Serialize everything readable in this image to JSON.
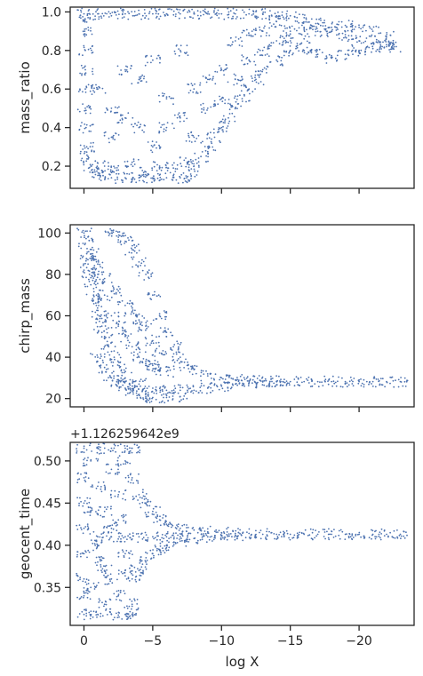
{
  "chart_data": [
    {
      "type": "scatter",
      "ylabel": "mass_ratio",
      "xlabel": "",
      "offset_text": "",
      "xlim": [
        1,
        -24
      ],
      "ylim": [
        0.085,
        1.025
      ],
      "xticks": [
        0,
        -5,
        -10,
        -15,
        -20
      ],
      "xtick_labels": [],
      "yticks": [
        0.2,
        0.4,
        0.6,
        0.8,
        1.0
      ],
      "ytick_labels": [
        "0.2",
        "0.4",
        "0.6",
        "0.8",
        "1.0"
      ],
      "color": "#4c72b0",
      "points": [
        [
          0,
          0.99
        ],
        [
          -0.3,
          0.97
        ],
        [
          -1,
          0.99
        ],
        [
          -2,
          0.98
        ],
        [
          -3,
          0.99
        ],
        [
          -4,
          0.99
        ],
        [
          -5,
          0.99
        ],
        [
          -6,
          0.99
        ],
        [
          -7,
          0.99
        ],
        [
          -8,
          0.99
        ],
        [
          -9,
          0.99
        ],
        [
          -10,
          0.99
        ],
        [
          -11,
          0.99
        ],
        [
          -12,
          0.99
        ],
        [
          -13,
          0.99
        ],
        [
          -14,
          0.98
        ],
        [
          -15,
          0.98
        ],
        [
          -16,
          0.97
        ],
        [
          -17,
          0.94
        ],
        [
          -18,
          0.9
        ],
        [
          -19,
          0.87
        ],
        [
          -20,
          0.85
        ],
        [
          -21,
          0.84
        ],
        [
          -22,
          0.83
        ],
        [
          -22.7,
          0.82
        ],
        [
          -0.05,
          0.9
        ],
        [
          -0.1,
          0.8
        ],
        [
          -0.1,
          0.7
        ],
        [
          -0.1,
          0.6
        ],
        [
          -0.1,
          0.5
        ],
        [
          -0.15,
          0.4
        ],
        [
          -0.2,
          0.3
        ],
        [
          -0.3,
          0.25
        ],
        [
          -0.5,
          0.2
        ],
        [
          -0.8,
          0.17
        ],
        [
          -1.2,
          0.15
        ],
        [
          -2,
          0.14
        ],
        [
          -3,
          0.14
        ],
        [
          -4,
          0.14
        ],
        [
          -5,
          0.14
        ],
        [
          -6,
          0.14
        ],
        [
          -7,
          0.14
        ],
        [
          -7.8,
          0.15
        ],
        [
          -8,
          0.2
        ],
        [
          -8.5,
          0.25
        ],
        [
          -9,
          0.3
        ],
        [
          -9.5,
          0.35
        ],
        [
          -10,
          0.4
        ],
        [
          -10.5,
          0.45
        ],
        [
          -11,
          0.5
        ],
        [
          -11.5,
          0.55
        ],
        [
          -12,
          0.6
        ],
        [
          -12.5,
          0.65
        ],
        [
          -13,
          0.7
        ],
        [
          -14,
          0.75
        ],
        [
          -15,
          0.8
        ],
        [
          -16,
          0.86
        ],
        [
          -17,
          0.9
        ],
        [
          -18,
          0.92
        ],
        [
          -19,
          0.93
        ],
        [
          -20,
          0.92
        ],
        [
          -21,
          0.9
        ],
        [
          -22,
          0.87
        ],
        [
          -16,
          0.8
        ],
        [
          -17,
          0.78
        ],
        [
          -18,
          0.76
        ],
        [
          -19,
          0.78
        ],
        [
          -20,
          0.8
        ],
        [
          -21,
          0.81
        ],
        [
          -22,
          0.82
        ],
        [
          -1,
          0.6
        ],
        [
          -2,
          0.5
        ],
        [
          -3,
          0.7
        ],
        [
          -4,
          0.4
        ],
        [
          -5,
          0.3
        ],
        [
          -6,
          0.55
        ],
        [
          -7,
          0.8
        ],
        [
          -8,
          0.6
        ],
        [
          -9,
          0.5
        ],
        [
          -10,
          0.7
        ],
        [
          -11,
          0.85
        ],
        [
          -12,
          0.75
        ],
        [
          -13,
          0.9
        ],
        [
          -14,
          0.85
        ],
        [
          -15,
          0.9
        ],
        [
          -16,
          0.92
        ],
        [
          -1.5,
          0.2
        ],
        [
          -2.5,
          0.18
        ],
        [
          -3.5,
          0.22
        ],
        [
          -4.5,
          0.17
        ],
        [
          -5.5,
          0.2
        ],
        [
          -6.5,
          0.19
        ],
        [
          -7.5,
          0.22
        ],
        [
          -2,
          0.35
        ],
        [
          -3,
          0.45
        ],
        [
          -4,
          0.65
        ],
        [
          -5,
          0.75
        ],
        [
          -6,
          0.4
        ],
        [
          -7,
          0.45
        ],
        [
          -8,
          0.35
        ],
        [
          -9,
          0.65
        ],
        [
          -10,
          0.55
        ],
        [
          -11,
          0.65
        ],
        [
          -12,
          0.88
        ],
        [
          -13,
          0.8
        ],
        [
          -14,
          0.95
        ],
        [
          -15,
          0.85
        ]
      ]
    },
    {
      "type": "scatter",
      "ylabel": "chirp_mass",
      "xlabel": "",
      "offset_text": "",
      "xlim": [
        1,
        -24
      ],
      "ylim": [
        16,
        104
      ],
      "xticks": [
        0,
        -5,
        -10,
        -15,
        -20
      ],
      "xtick_labels": [],
      "yticks": [
        20,
        40,
        60,
        80,
        100
      ],
      "ytick_labels": [
        "20",
        "40",
        "60",
        "80",
        "100"
      ],
      "color": "#4c72b0",
      "points": [
        [
          0,
          100
        ],
        [
          -0.1,
          95
        ],
        [
          -0.2,
          90
        ],
        [
          -0.3,
          85
        ],
        [
          -0.4,
          80
        ],
        [
          -0.5,
          75
        ],
        [
          -0.7,
          70
        ],
        [
          -0.9,
          65
        ],
        [
          -1.1,
          60
        ],
        [
          -1.3,
          55
        ],
        [
          -1.5,
          50
        ],
        [
          -1.8,
          45
        ],
        [
          -2.2,
          40
        ],
        [
          -2.6,
          35
        ],
        [
          -3,
          30
        ],
        [
          -3.3,
          27
        ],
        [
          -3.6,
          24
        ],
        [
          -4,
          22
        ],
        [
          -4.5,
          21
        ],
        [
          -5,
          20.5
        ],
        [
          -6,
          20.5
        ],
        [
          -7,
          21
        ],
        [
          -2,
          100
        ],
        [
          -2.5,
          98
        ],
        [
          -3,
          96
        ],
        [
          -3.5,
          92
        ],
        [
          -4,
          86
        ],
        [
          -4.5,
          80
        ],
        [
          -5,
          70
        ],
        [
          -5.5,
          60
        ],
        [
          -6,
          52
        ],
        [
          -6.5,
          45
        ],
        [
          -7,
          40
        ],
        [
          -7.5,
          36
        ],
        [
          -8,
          34
        ],
        [
          -9,
          31
        ],
        [
          -10,
          30
        ],
        [
          -11,
          29
        ],
        [
          -12,
          28.5
        ],
        [
          -13,
          28.4
        ],
        [
          -14,
          28.3
        ],
        [
          -15,
          28.2
        ],
        [
          -16,
          28.2
        ],
        [
          -17,
          28.2
        ],
        [
          -18,
          28.2
        ],
        [
          -19,
          28.2
        ],
        [
          -20,
          28.2
        ],
        [
          -21,
          28.2
        ],
        [
          -22,
          28.2
        ],
        [
          -23,
          28.2
        ],
        [
          -8,
          24
        ],
        [
          -9,
          25
        ],
        [
          -10,
          26
        ],
        [
          -11,
          27
        ],
        [
          -12,
          27.5
        ],
        [
          -13,
          28
        ],
        [
          -14,
          28.1
        ],
        [
          -1,
          80
        ],
        [
          -1.5,
          70
        ],
        [
          -2,
          60
        ],
        [
          -2.5,
          55
        ],
        [
          -3,
          50
        ],
        [
          -3.5,
          45
        ],
        [
          -4,
          40
        ],
        [
          -4.5,
          38
        ],
        [
          -5,
          36
        ],
        [
          -5.5,
          34
        ],
        [
          -6,
          33
        ],
        [
          -1,
          40
        ],
        [
          -1.5,
          35
        ],
        [
          -2,
          30
        ],
        [
          -2.5,
          28
        ],
        [
          -3,
          25
        ],
        [
          -4,
          27
        ],
        [
          -5,
          25
        ],
        [
          -6,
          24
        ],
        [
          -7,
          24
        ],
        [
          -0.5,
          90
        ],
        [
          -1,
          85
        ],
        [
          -1.5,
          78
        ],
        [
          -2.5,
          72
        ],
        [
          -3,
          65
        ],
        [
          -3.5,
          62
        ],
        [
          -4,
          58
        ],
        [
          -4.5,
          55
        ],
        [
          -5,
          48
        ],
        [
          -5.5,
          42
        ]
      ]
    },
    {
      "type": "scatter",
      "ylabel": "geocent_time",
      "xlabel": "log X",
      "offset_text": "+1.126259642e9",
      "xlim": [
        1,
        -24
      ],
      "ylim": [
        0.305,
        0.522
      ],
      "xticks": [
        0,
        -5,
        -10,
        -15,
        -20
      ],
      "xtick_labels": [
        "0",
        "−5",
        "−10",
        "−15",
        "−20"
      ],
      "yticks": [
        0.35,
        0.4,
        0.45,
        0.5
      ],
      "ytick_labels": [
        "0.35",
        "0.40",
        "0.45",
        "0.50"
      ],
      "color": "#4c72b0",
      "points": [
        [
          0,
          0.515
        ],
        [
          -1,
          0.515
        ],
        [
          -2,
          0.515
        ],
        [
          -3,
          0.515
        ],
        [
          -3.5,
          0.515
        ],
        [
          0,
          0.318
        ],
        [
          -1,
          0.318
        ],
        [
          -2,
          0.318
        ],
        [
          -3,
          0.318
        ],
        [
          -3.5,
          0.318
        ],
        [
          0,
          0.48
        ],
        [
          0,
          0.45
        ],
        [
          0,
          0.42
        ],
        [
          0,
          0.39
        ],
        [
          0,
          0.36
        ],
        [
          0,
          0.34
        ],
        [
          -0.5,
          0.5
        ],
        [
          -1,
          0.47
        ],
        [
          -1.5,
          0.44
        ],
        [
          -2,
          0.49
        ],
        [
          -2.5,
          0.43
        ],
        [
          -3,
          0.5
        ],
        [
          -3.5,
          0.48
        ],
        [
          -0.5,
          0.35
        ],
        [
          -1,
          0.38
        ],
        [
          -1.5,
          0.33
        ],
        [
          -2,
          0.36
        ],
        [
          -2.5,
          0.34
        ],
        [
          -3,
          0.37
        ],
        [
          -3.5,
          0.33
        ],
        [
          -4,
          0.46
        ],
        [
          -4.5,
          0.45
        ],
        [
          -5,
          0.44
        ],
        [
          -5.5,
          0.43
        ],
        [
          -6,
          0.425
        ],
        [
          -7,
          0.42
        ],
        [
          -8,
          0.418
        ],
        [
          -9,
          0.416
        ],
        [
          -10,
          0.415
        ],
        [
          -11,
          0.414
        ],
        [
          -12,
          0.414
        ],
        [
          -13,
          0.413
        ],
        [
          -14,
          0.413
        ],
        [
          -15,
          0.413
        ],
        [
          -16,
          0.413
        ],
        [
          -17,
          0.413
        ],
        [
          -18,
          0.413
        ],
        [
          -19,
          0.413
        ],
        [
          -20,
          0.413
        ],
        [
          -21,
          0.413
        ],
        [
          -22,
          0.413
        ],
        [
          -23,
          0.413
        ],
        [
          -4,
          0.37
        ],
        [
          -4.5,
          0.38
        ],
        [
          -5,
          0.39
        ],
        [
          -5.5,
          0.395
        ],
        [
          -6,
          0.4
        ],
        [
          -7,
          0.405
        ],
        [
          -8,
          0.408
        ],
        [
          -9,
          0.41
        ],
        [
          -10,
          0.411
        ],
        [
          -11,
          0.412
        ],
        [
          -1,
          0.41
        ],
        [
          -2,
          0.41
        ],
        [
          -3,
          0.41
        ],
        [
          -4,
          0.41
        ],
        [
          -5,
          0.41
        ],
        [
          -6,
          0.41
        ],
        [
          -7,
          0.41
        ],
        [
          -0.5,
          0.44
        ],
        [
          -1,
          0.4
        ],
        [
          -1.5,
          0.37
        ],
        [
          -2,
          0.42
        ],
        [
          -2.5,
          0.46
        ],
        [
          -3,
          0.39
        ],
        [
          -3.5,
          0.36
        ]
      ]
    }
  ]
}
